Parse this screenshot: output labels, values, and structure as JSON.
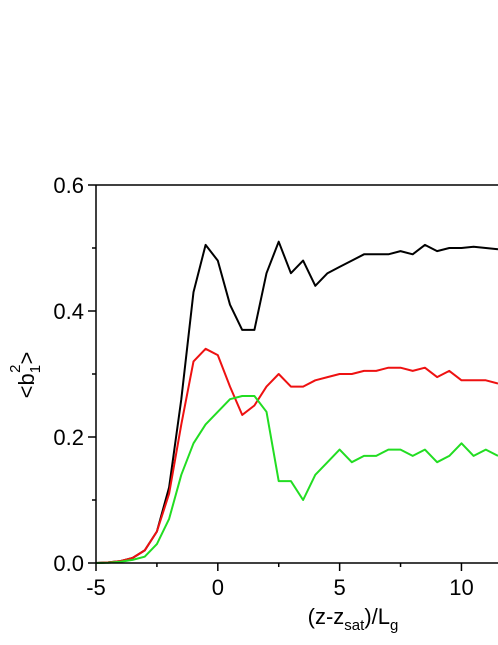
{
  "chart_data": {
    "type": "line",
    "xlabel_parts": [
      "(z-z",
      "sat",
      ")/L",
      "g"
    ],
    "ylabel_parts": [
      "<b",
      "1",
      "2",
      ">"
    ],
    "x": [
      -5,
      -4.5,
      -4,
      -3.5,
      -3,
      -2.5,
      -2,
      -1.5,
      -1,
      -0.5,
      0,
      0.5,
      1,
      1.5,
      2,
      2.5,
      3,
      3.5,
      4,
      4.5,
      5,
      5.5,
      6,
      6.5,
      7,
      7.5,
      8,
      8.5,
      9,
      9.5,
      10,
      10.5,
      11,
      11.5
    ],
    "series": [
      {
        "color": "#000000",
        "values": [
          0,
          0.001,
          0.003,
          0.008,
          0.02,
          0.05,
          0.12,
          0.26,
          0.43,
          0.505,
          0.48,
          0.41,
          0.37,
          0.37,
          0.46,
          0.51,
          0.46,
          0.48,
          0.44,
          0.46,
          0.47,
          0.48,
          0.49,
          0.49,
          0.49,
          0.495,
          0.49,
          0.505,
          0.495,
          0.5,
          0.5,
          0.502,
          0.5,
          0.498
        ]
      },
      {
        "color": "#ee1111",
        "values": [
          0,
          0.001,
          0.003,
          0.008,
          0.02,
          0.05,
          0.11,
          0.22,
          0.32,
          0.34,
          0.33,
          0.28,
          0.235,
          0.25,
          0.28,
          0.3,
          0.28,
          0.28,
          0.29,
          0.295,
          0.3,
          0.3,
          0.305,
          0.305,
          0.31,
          0.31,
          0.305,
          0.31,
          0.295,
          0.305,
          0.29,
          0.29,
          0.29,
          0.285
        ]
      },
      {
        "color": "#22dd22",
        "values": [
          0,
          0.0005,
          0.002,
          0.005,
          0.01,
          0.03,
          0.07,
          0.14,
          0.19,
          0.22,
          0.24,
          0.26,
          0.265,
          0.265,
          0.24,
          0.13,
          0.13,
          0.1,
          0.14,
          0.16,
          0.18,
          0.16,
          0.17,
          0.17,
          0.18,
          0.18,
          0.17,
          0.18,
          0.16,
          0.17,
          0.19,
          0.17,
          0.18,
          0.17
        ]
      }
    ],
    "xlim": [
      -5,
      11.5
    ],
    "ylim": [
      0,
      0.6
    ],
    "xticks": [
      -5,
      0,
      5,
      10
    ],
    "yticks": [
      {
        "value": 0,
        "label": "0.0"
      },
      {
        "value": 0.2,
        "label": "0.2"
      },
      {
        "value": 0.4,
        "label": "0.4"
      },
      {
        "value": 0.6,
        "label": "0.6"
      }
    ],
    "xminorticks": [
      -2.5,
      2.5,
      7.5
    ],
    "yminorticks": [
      0.1,
      0.3,
      0.5
    ]
  }
}
